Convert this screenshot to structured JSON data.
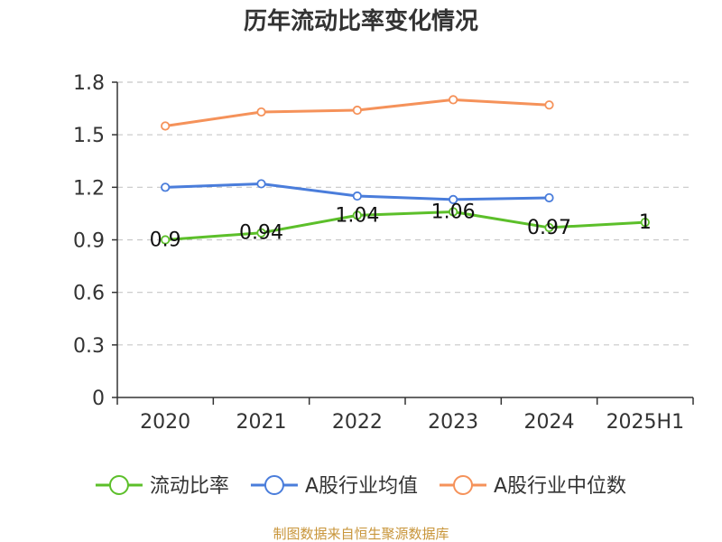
{
  "chart_data": {
    "type": "line",
    "title": "历年流动比率变化情况",
    "categories": [
      "2020",
      "2021",
      "2022",
      "2023",
      "2024",
      "2025H1"
    ],
    "ylim": [
      0,
      1.8
    ],
    "yticks": [
      "0",
      "0.3",
      "0.6",
      "0.9",
      "1.2",
      "1.5",
      "1.8"
    ],
    "grid": true,
    "legend_position": "bottom",
    "series": [
      {
        "name": "流动比率",
        "color": "#5cbf2a",
        "values": [
          0.9,
          0.94,
          1.04,
          1.06,
          0.97,
          1.0
        ],
        "data_labels": [
          "0.9",
          "0.94",
          "1.04",
          "1.06",
          "0.97",
          "1"
        ]
      },
      {
        "name": "A股行业均值",
        "color": "#4a7ddb",
        "values": [
          1.2,
          1.22,
          1.15,
          1.13,
          1.14,
          null
        ],
        "data_labels": []
      },
      {
        "name": "A股行业中位数",
        "color": "#f5925a",
        "values": [
          1.55,
          1.63,
          1.64,
          1.7,
          1.67,
          null
        ],
        "data_labels": []
      }
    ],
    "source": "制图数据来自恒生聚源数据库"
  }
}
